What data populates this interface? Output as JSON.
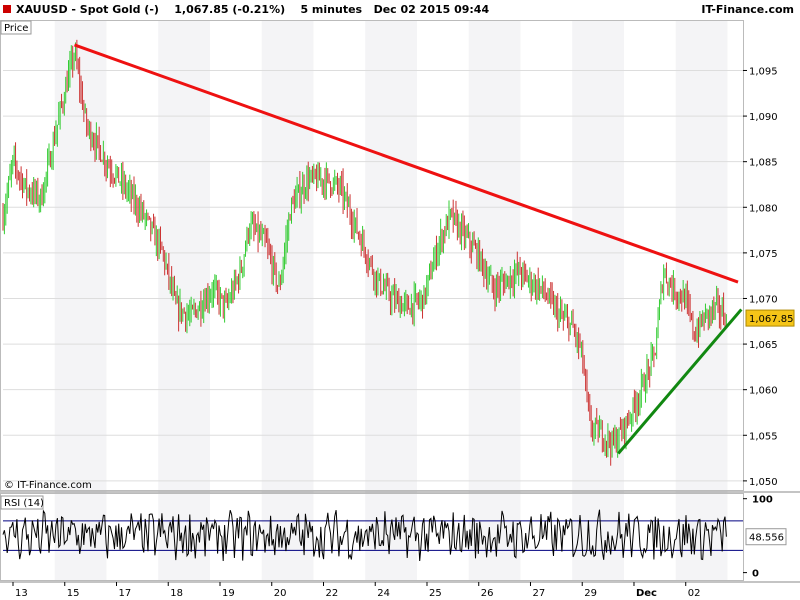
{
  "header": {
    "title": "XAUUSD - Spot Gold (-)    1,067.85 (-0.21%)    5 minutes   Dec 02 2015 09:44",
    "brand": "IT-Finance.com"
  },
  "colors": {
    "up": "#33cc33",
    "down": "#cc3333",
    "resistance": "#ee1111",
    "support": "#118811",
    "last_price_bg": "#f5c518",
    "rsi_line": "#000000",
    "rsi_levels": "#000080",
    "band": "#f4f4f6"
  },
  "chart_data": [
    {
      "type": "candlestick",
      "panel_label": "Price",
      "watermark": "© IT-Finance.com",
      "x_tick_labels": [
        "13",
        "15",
        "17",
        "18",
        "19",
        "20",
        "22",
        "24",
        "25",
        "26",
        "27",
        "29",
        "Dec",
        "02"
      ],
      "y_ticks": [
        1050,
        1055,
        1060,
        1065,
        1070,
        1075,
        1080,
        1085,
        1090,
        1095
      ],
      "y_tick_labels": [
        "1,050",
        "1,055",
        "1,060",
        "1,065",
        "1,070",
        "1,075",
        "1,080",
        "1,085",
        "1,090",
        "1,095"
      ],
      "ylim": [
        1049,
        1099
      ],
      "last_price": 1067.85,
      "last_price_label": "1,067.85",
      "path_anchors": [
        [
          0,
          1079
        ],
        [
          0.6,
          1085
        ],
        [
          1.4,
          1082
        ],
        [
          2.3,
          1081
        ],
        [
          3.5,
          1091
        ],
        [
          4.3,
          1097
        ],
        [
          5.0,
          1089
        ],
        [
          6.2,
          1085
        ],
        [
          7.4,
          1082
        ],
        [
          8.5,
          1079
        ],
        [
          9.6,
          1075
        ],
        [
          10.4,
          1069
        ],
        [
          11.3,
          1068
        ],
        [
          12.6,
          1071
        ],
        [
          13.4,
          1069
        ],
        [
          14.3,
          1073
        ],
        [
          14.8,
          1078
        ],
        [
          15.8,
          1076
        ],
        [
          16.6,
          1071
        ],
        [
          17.3,
          1080
        ],
        [
          18.3,
          1083
        ],
        [
          19.5,
          1083
        ],
        [
          20.3,
          1082
        ],
        [
          21.4,
          1077
        ],
        [
          22.5,
          1072
        ],
        [
          23.4,
          1070
        ],
        [
          24.3,
          1069
        ],
        [
          25.3,
          1070
        ],
        [
          26.2,
          1076
        ],
        [
          26.9,
          1079
        ],
        [
          27.7,
          1077
        ],
        [
          28.5,
          1075
        ],
        [
          29.5,
          1071
        ],
        [
          30.3,
          1072
        ],
        [
          31.0,
          1073
        ],
        [
          31.6,
          1072
        ],
        [
          32.4,
          1071
        ],
        [
          33.5,
          1068
        ],
        [
          34.2,
          1067
        ],
        [
          34.8,
          1064
        ],
        [
          35.3,
          1056
        ],
        [
          36.1,
          1055
        ],
        [
          36.7,
          1054
        ],
        [
          37.4,
          1056
        ],
        [
          38.4,
          1060
        ],
        [
          39.2,
          1064
        ],
        [
          39.7,
          1073
        ],
        [
          40.3,
          1071
        ],
        [
          41.0,
          1070
        ],
        [
          41.6,
          1066
        ],
        [
          42.2,
          1068
        ],
        [
          42.9,
          1069
        ],
        [
          43.5,
          1068
        ]
      ],
      "resistance_line": {
        "x": [
          4.3,
          44.2
        ],
        "y": [
          1097.8,
          1071.8
        ]
      },
      "support_line": {
        "x": [
          37.0,
          44.4
        ],
        "y": [
          1053.0,
          1068.8
        ]
      }
    },
    {
      "type": "line",
      "panel_label": "RSI (14)",
      "y_ticks": [
        0,
        100
      ],
      "y_tick_labels": [
        "0",
        "100"
      ],
      "levels": [
        30,
        70
      ],
      "ylim": [
        -10,
        105
      ],
      "last_value": 48.556,
      "last_value_label": "48.556"
    }
  ]
}
